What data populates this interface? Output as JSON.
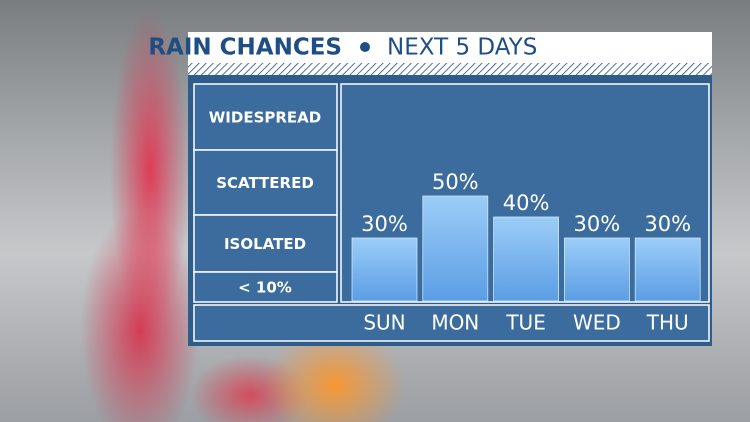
{
  "chart_data": {
    "type": "bar",
    "title": "RAIN CHANCES",
    "subtitle": "NEXT 5 DAYS",
    "bands": [
      "WIDESPREAD",
      "SCATTERED",
      "ISOLATED",
      "< 10%"
    ],
    "categories": [
      "SUN",
      "MON",
      "TUE",
      "WED",
      "THU"
    ],
    "values": [
      30,
      50,
      40,
      30,
      30
    ],
    "value_labels": [
      "30%",
      "50%",
      "40%",
      "30%",
      "30%"
    ],
    "color": "#5b9de4"
  }
}
